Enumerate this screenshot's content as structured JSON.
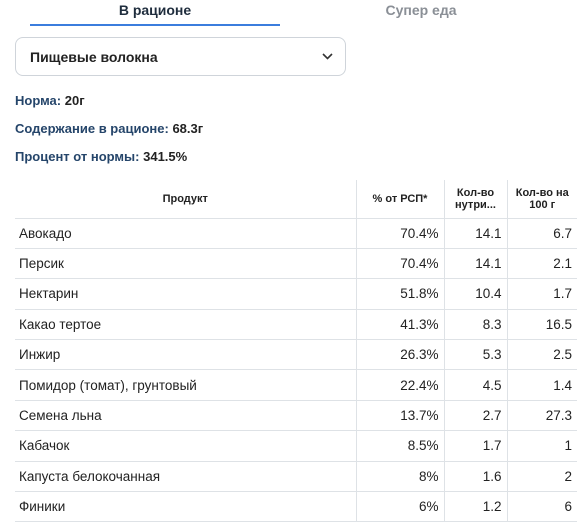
{
  "tabs": [
    {
      "label": "В рационе",
      "active": true
    },
    {
      "label": "Супер еда",
      "active": false
    }
  ],
  "nutrient_select": {
    "value": "Пищевые волокна",
    "icon": "chevron-down-icon"
  },
  "stats": {
    "norm_label": "Норма:",
    "norm_value": "20г",
    "content_label": "Содержание в рационе:",
    "content_value": "68.3г",
    "percent_label": "Процент от нормы:",
    "percent_value": "341.5%"
  },
  "table": {
    "headers": [
      "Продукт",
      "% от РСП*",
      "Кол-во нутри...",
      "Кол-во на 100 г"
    ],
    "rows": [
      {
        "product": "Авокадо",
        "pct": "70.4%",
        "amount": "14.1",
        "per100": "6.7"
      },
      {
        "product": "Персик",
        "pct": "70.4%",
        "amount": "14.1",
        "per100": "2.1"
      },
      {
        "product": "Нектарин",
        "pct": "51.8%",
        "amount": "10.4",
        "per100": "1.7"
      },
      {
        "product": "Какао тертое",
        "pct": "41.3%",
        "amount": "8.3",
        "per100": "16.5"
      },
      {
        "product": "Инжир",
        "pct": "26.3%",
        "amount": "5.3",
        "per100": "2.5"
      },
      {
        "product": "Помидор (томат), грунтовый",
        "pct": "22.4%",
        "amount": "4.5",
        "per100": "1.4"
      },
      {
        "product": "Семена льна",
        "pct": "13.7%",
        "amount": "2.7",
        "per100": "27.3"
      },
      {
        "product": "Кабачок",
        "pct": "8.5%",
        "amount": "1.7",
        "per100": "1"
      },
      {
        "product": "Капуста белокочанная",
        "pct": "8%",
        "amount": "1.6",
        "per100": "2"
      },
      {
        "product": "Финики",
        "pct": "6%",
        "amount": "1.2",
        "per100": "6"
      }
    ]
  }
}
